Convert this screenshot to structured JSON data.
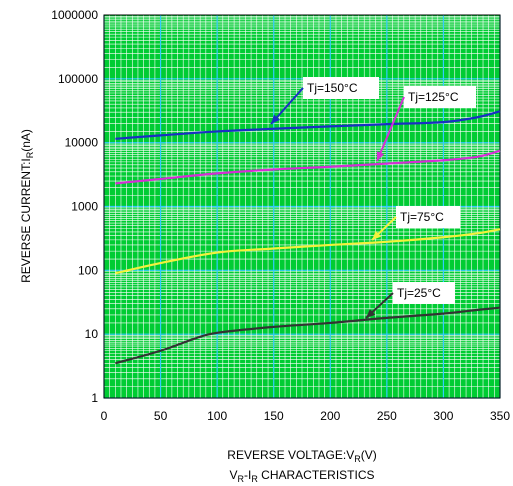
{
  "chart_data": {
    "type": "line",
    "title": "",
    "caption": {
      "main": "V",
      "sub1": "R",
      "dash": "-I",
      "sub2": "R",
      "rest": " CHARACTERISTICS"
    },
    "xlabel": {
      "main": "REVERSE VOLTAGE:V",
      "sub": "R",
      "unit": "(V)"
    },
    "ylabel": {
      "main": "REVERSE CURRENT:I",
      "sub": "R",
      "unit": "(nA)"
    },
    "xlim": [
      0,
      350
    ],
    "ylim": [
      1,
      1000000
    ],
    "yscale": "log",
    "grid": true,
    "legend": "none",
    "x_ticks": [
      "0",
      "50",
      "100",
      "150",
      "200",
      "250",
      "300",
      "350"
    ],
    "y_ticks": [
      "1",
      "10",
      "100",
      "1000",
      "10000",
      "100000",
      "1000000"
    ],
    "series": [
      {
        "name": "Tj=150°C",
        "color": "#1a2fc4",
        "x": [
          10,
          50,
          100,
          150,
          200,
          250,
          300,
          330,
          350
        ],
        "values": [
          11500,
          13000,
          15000,
          16500,
          18000,
          19500,
          21000,
          25000,
          31000
        ]
      },
      {
        "name": "Tj=125°C",
        "color": "#d42fd4",
        "x": [
          10,
          50,
          100,
          150,
          200,
          250,
          300,
          330,
          350
        ],
        "values": [
          2300,
          2700,
          3300,
          3800,
          4200,
          4700,
          5300,
          6000,
          7500
        ]
      },
      {
        "name": "Tj=75°C",
        "color": "#f2f23c",
        "x": [
          10,
          50,
          100,
          150,
          200,
          250,
          300,
          330,
          350
        ],
        "values": [
          90,
          130,
          190,
          220,
          250,
          280,
          330,
          380,
          440
        ]
      },
      {
        "name": "Tj=25°C",
        "color": "#333333",
        "x": [
          10,
          50,
          80,
          100,
          150,
          200,
          250,
          300,
          330,
          350
        ],
        "values": [
          3.5,
          5.5,
          8.5,
          10.5,
          13,
          15,
          18,
          21,
          24,
          26
        ]
      }
    ],
    "annotations": [
      {
        "text": "Tj=150°C",
        "series": 0
      },
      {
        "text": "Tj=125°C",
        "series": 1
      },
      {
        "text": "Tj=75°C",
        "series": 2
      },
      {
        "text": "Tj=25°C",
        "series": 3
      }
    ],
    "colors": {
      "background": "#00cc33",
      "grid": "#ffffff",
      "grid_axis_tint": "#33ccff",
      "arrow": "#1a2fc4"
    }
  }
}
